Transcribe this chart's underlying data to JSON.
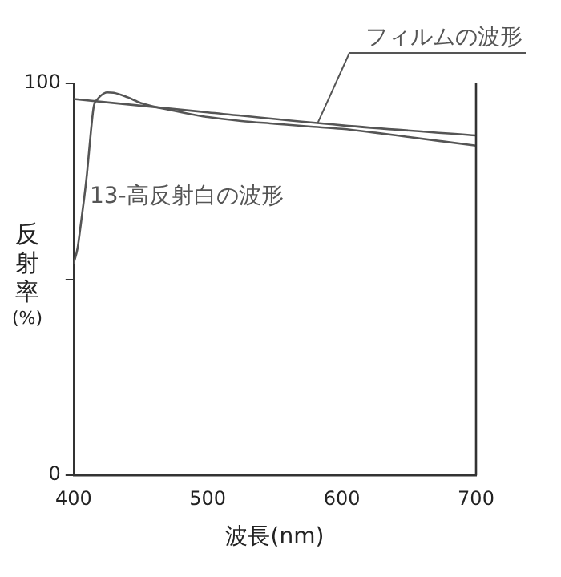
{
  "chart_data": {
    "type": "line",
    "xlabel": "波長(nm)",
    "ylabel": "反射率(%)",
    "xlim": [
      400,
      700
    ],
    "xticks": [
      400,
      500,
      600,
      700
    ],
    "ylim": [
      0,
      100
    ],
    "yticks": [
      0,
      {
        "value": 50,
        "label": null
      },
      100
    ],
    "grid": false,
    "legend": false,
    "marker": "none",
    "line_style": "solid",
    "series": [
      {
        "name": "フィルムの波形",
        "color": "#555555",
        "x": [
          400,
          500,
          600,
          700
        ],
        "values": [
          96,
          92.6,
          89.3,
          86.7
        ]
      },
      {
        "name": "13-高反射白の波形",
        "color": "#555555",
        "x": [
          400,
          403,
          405,
          408,
          410,
          413,
          415,
          418,
          420,
          425,
          430,
          440,
          450,
          475,
          500,
          525,
          550,
          575,
          600,
          625,
          650,
          675,
          700
        ],
        "values": [
          54,
          58,
          63,
          71,
          77,
          88,
          94,
          96,
          96.8,
          97.7,
          97.6,
          96.5,
          95,
          93,
          91.4,
          90.4,
          89.7,
          89,
          88.4,
          87.4,
          86.3,
          85.2,
          84.1
        ]
      }
    ]
  }
}
